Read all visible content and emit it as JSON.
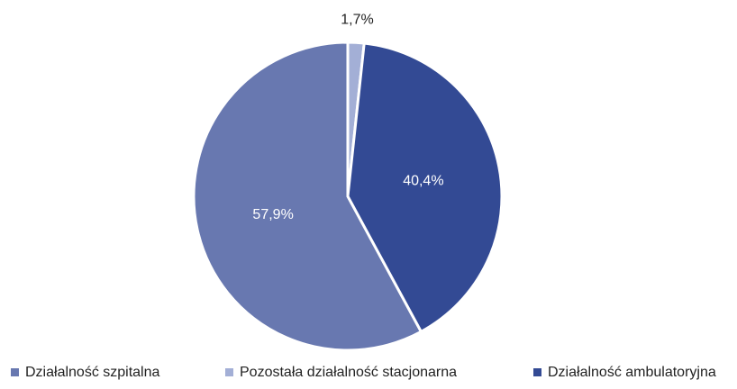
{
  "chart_data": {
    "type": "pie",
    "categories": [
      "Działalność szpitalna",
      "Pozostała działalność stacjonarna",
      "Działalność ambulatoryjna"
    ],
    "values": [
      57.9,
      1.7,
      40.4
    ],
    "value_labels": [
      "57,9%",
      "1,7%",
      "40,4%"
    ],
    "colors": [
      "#6878b0",
      "#a3afd6",
      "#334a94"
    ],
    "legend": "bottom"
  }
}
